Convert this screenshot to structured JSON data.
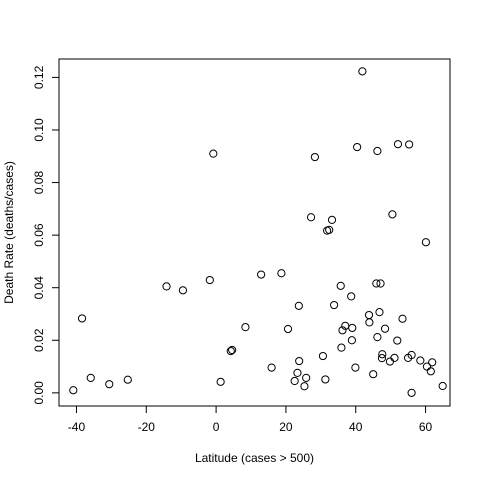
{
  "chart_data": {
    "type": "scatter",
    "title": "",
    "xlabel": "Latitude (cases > 500)",
    "ylabel": "Death Rate (deaths/cases)",
    "xlim": [
      -45,
      67
    ],
    "ylim": [
      -0.005,
      0.127
    ],
    "xticks": [
      -40,
      -20,
      0,
      20,
      40,
      60
    ],
    "yticks": [
      0.0,
      0.02,
      0.04,
      0.06,
      0.08,
      0.1,
      0.12
    ],
    "xtick_labels": [
      "-40",
      "-20",
      "0",
      "20",
      "40",
      "60"
    ],
    "ytick_labels": [
      "0.00",
      "0.02",
      "0.04",
      "0.06",
      "0.08",
      "0.10",
      "0.12"
    ],
    "grid": false,
    "legend": "none",
    "points": [
      {
        "x": -40.9,
        "y": 0.001
      },
      {
        "x": -38.4,
        "y": 0.0283
      },
      {
        "x": -35.9,
        "y": 0.0057
      },
      {
        "x": -30.6,
        "y": 0.0033
      },
      {
        "x": -25.3,
        "y": 0.005
      },
      {
        "x": -14.2,
        "y": 0.0405
      },
      {
        "x": -9.5,
        "y": 0.039
      },
      {
        "x": -1.8,
        "y": 0.0429
      },
      {
        "x": -0.8,
        "y": 0.091
      },
      {
        "x": 1.3,
        "y": 0.0042
      },
      {
        "x": 4.2,
        "y": 0.0159
      },
      {
        "x": 4.6,
        "y": 0.0163
      },
      {
        "x": 8.4,
        "y": 0.025
      },
      {
        "x": 12.9,
        "y": 0.045
      },
      {
        "x": 15.9,
        "y": 0.0096
      },
      {
        "x": 18.7,
        "y": 0.0455
      },
      {
        "x": 20.6,
        "y": 0.0243
      },
      {
        "x": 22.5,
        "y": 0.0045
      },
      {
        "x": 23.3,
        "y": 0.0076
      },
      {
        "x": 23.7,
        "y": 0.0331
      },
      {
        "x": 23.8,
        "y": 0.0121
      },
      {
        "x": 25.3,
        "y": 0.0025
      },
      {
        "x": 25.8,
        "y": 0.0057
      },
      {
        "x": 27.2,
        "y": 0.0668
      },
      {
        "x": 28.3,
        "y": 0.0897
      },
      {
        "x": 30.6,
        "y": 0.014
      },
      {
        "x": 31.3,
        "y": 0.0051
      },
      {
        "x": 31.8,
        "y": 0.0617
      },
      {
        "x": 32.4,
        "y": 0.062
      },
      {
        "x": 33.2,
        "y": 0.0658
      },
      {
        "x": 33.8,
        "y": 0.0334
      },
      {
        "x": 35.7,
        "y": 0.0407
      },
      {
        "x": 35.9,
        "y": 0.0172
      },
      {
        "x": 36.2,
        "y": 0.0238
      },
      {
        "x": 37.0,
        "y": 0.0255
      },
      {
        "x": 38.7,
        "y": 0.0367
      },
      {
        "x": 38.9,
        "y": 0.02
      },
      {
        "x": 39.0,
        "y": 0.0247
      },
      {
        "x": 39.9,
        "y": 0.0096
      },
      {
        "x": 40.4,
        "y": 0.0935
      },
      {
        "x": 41.9,
        "y": 0.1223
      },
      {
        "x": 43.8,
        "y": 0.0296
      },
      {
        "x": 43.9,
        "y": 0.0268
      },
      {
        "x": 45.0,
        "y": 0.0071
      },
      {
        "x": 45.9,
        "y": 0.0416
      },
      {
        "x": 46.2,
        "y": 0.092
      },
      {
        "x": 46.2,
        "y": 0.0212
      },
      {
        "x": 46.8,
        "y": 0.0307
      },
      {
        "x": 47.1,
        "y": 0.0416
      },
      {
        "x": 47.5,
        "y": 0.0132
      },
      {
        "x": 47.6,
        "y": 0.0147
      },
      {
        "x": 48.4,
        "y": 0.0244
      },
      {
        "x": 49.8,
        "y": 0.0119
      },
      {
        "x": 50.5,
        "y": 0.0679
      },
      {
        "x": 51.1,
        "y": 0.0133
      },
      {
        "x": 51.9,
        "y": 0.0199
      },
      {
        "x": 52.1,
        "y": 0.0946
      },
      {
        "x": 53.4,
        "y": 0.0282
      },
      {
        "x": 55.0,
        "y": 0.0133
      },
      {
        "x": 55.3,
        "y": 0.0945
      },
      {
        "x": 56.0,
        "y": 0.0144
      },
      {
        "x": 56.0,
        "y": 0.0
      },
      {
        "x": 58.5,
        "y": 0.0123
      },
      {
        "x": 60.1,
        "y": 0.0573
      },
      {
        "x": 60.4,
        "y": 0.01
      },
      {
        "x": 61.5,
        "y": 0.0082
      },
      {
        "x": 61.9,
        "y": 0.0116
      },
      {
        "x": 64.9,
        "y": 0.0026
      }
    ]
  }
}
